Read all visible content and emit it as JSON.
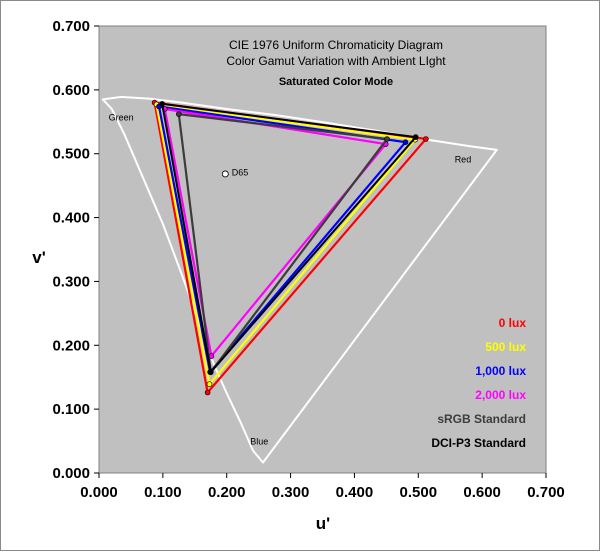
{
  "chart_data": {
    "type": "scatter",
    "title": "CIE 1976 Uniform Chromaticity Diagram",
    "subtitle": "Color Gamut Variation with Ambient LIght",
    "mode_label": "Saturated Color Mode",
    "xlabel": "u'",
    "ylabel": "v'",
    "xlim": [
      0,
      0.7
    ],
    "ylim": [
      0,
      0.7
    ],
    "x_ticks": [
      "0.000",
      "0.100",
      "0.200",
      "0.300",
      "0.400",
      "0.500",
      "0.600",
      "0.700"
    ],
    "y_ticks": [
      "0.000",
      "0.100",
      "0.200",
      "0.300",
      "0.400",
      "0.500",
      "0.600",
      "0.700"
    ],
    "plot_background": "#c0c0c0",
    "grid": false,
    "legend_position": "bottom-right",
    "annotations": [
      {
        "text": "Green",
        "x": 0.015,
        "y": 0.552
      },
      {
        "text": "Red",
        "x": 0.557,
        "y": 0.486
      },
      {
        "text": "Blue",
        "x": 0.237,
        "y": 0.045
      },
      {
        "text": "D65",
        "x": 0.208,
        "y": 0.466
      }
    ],
    "white_point": {
      "name": "D65",
      "u": 0.1978,
      "v": 0.4683
    },
    "spectral_locus": [
      [
        0.2568,
        0.0165
      ],
      [
        0.2412,
        0.035
      ],
      [
        0.2215,
        0.08
      ],
      [
        0.2,
        0.125
      ],
      [
        0.18,
        0.17
      ],
      [
        0.155,
        0.24
      ],
      [
        0.13,
        0.31
      ],
      [
        0.1,
        0.39
      ],
      [
        0.07,
        0.46
      ],
      [
        0.04,
        0.53
      ],
      [
        0.02,
        0.57
      ],
      [
        0.006,
        0.585
      ],
      [
        0.035,
        0.589
      ],
      [
        0.08,
        0.586
      ],
      [
        0.13,
        0.58
      ],
      [
        0.2,
        0.57
      ],
      [
        0.28,
        0.56
      ],
      [
        0.36,
        0.548
      ],
      [
        0.44,
        0.535
      ],
      [
        0.52,
        0.521
      ],
      [
        0.58,
        0.512
      ],
      [
        0.623,
        0.506
      ]
    ],
    "series": [
      {
        "name": "0 lux",
        "color": "#ff0000",
        "points": [
          [
            0.087,
            0.58
          ],
          [
            0.512,
            0.523
          ],
          [
            0.17,
            0.126
          ]
        ]
      },
      {
        "name": "500 lux",
        "color": "#ffff00",
        "points": [
          [
            0.09,
            0.577
          ],
          [
            0.495,
            0.522
          ],
          [
            0.173,
            0.139
          ]
        ]
      },
      {
        "name": "1,000 lux",
        "color": "#0000ff",
        "points": [
          [
            0.094,
            0.574
          ],
          [
            0.48,
            0.518
          ],
          [
            0.174,
            0.158
          ]
        ]
      },
      {
        "name": "2,000 lux",
        "color": "#ff00ff",
        "points": [
          [
            0.103,
            0.57
          ],
          [
            0.449,
            0.515
          ],
          [
            0.176,
            0.183
          ]
        ]
      },
      {
        "name": "sRGB Standard",
        "color": "#3c3c3c",
        "points": [
          [
            0.125,
            0.562
          ],
          [
            0.451,
            0.523
          ],
          [
            0.175,
            0.158
          ]
        ]
      },
      {
        "name": "DCI-P3 Standard",
        "color": "#000000",
        "points": [
          [
            0.099,
            0.578
          ],
          [
            0.496,
            0.526
          ],
          [
            0.175,
            0.158
          ]
        ]
      }
    ]
  }
}
